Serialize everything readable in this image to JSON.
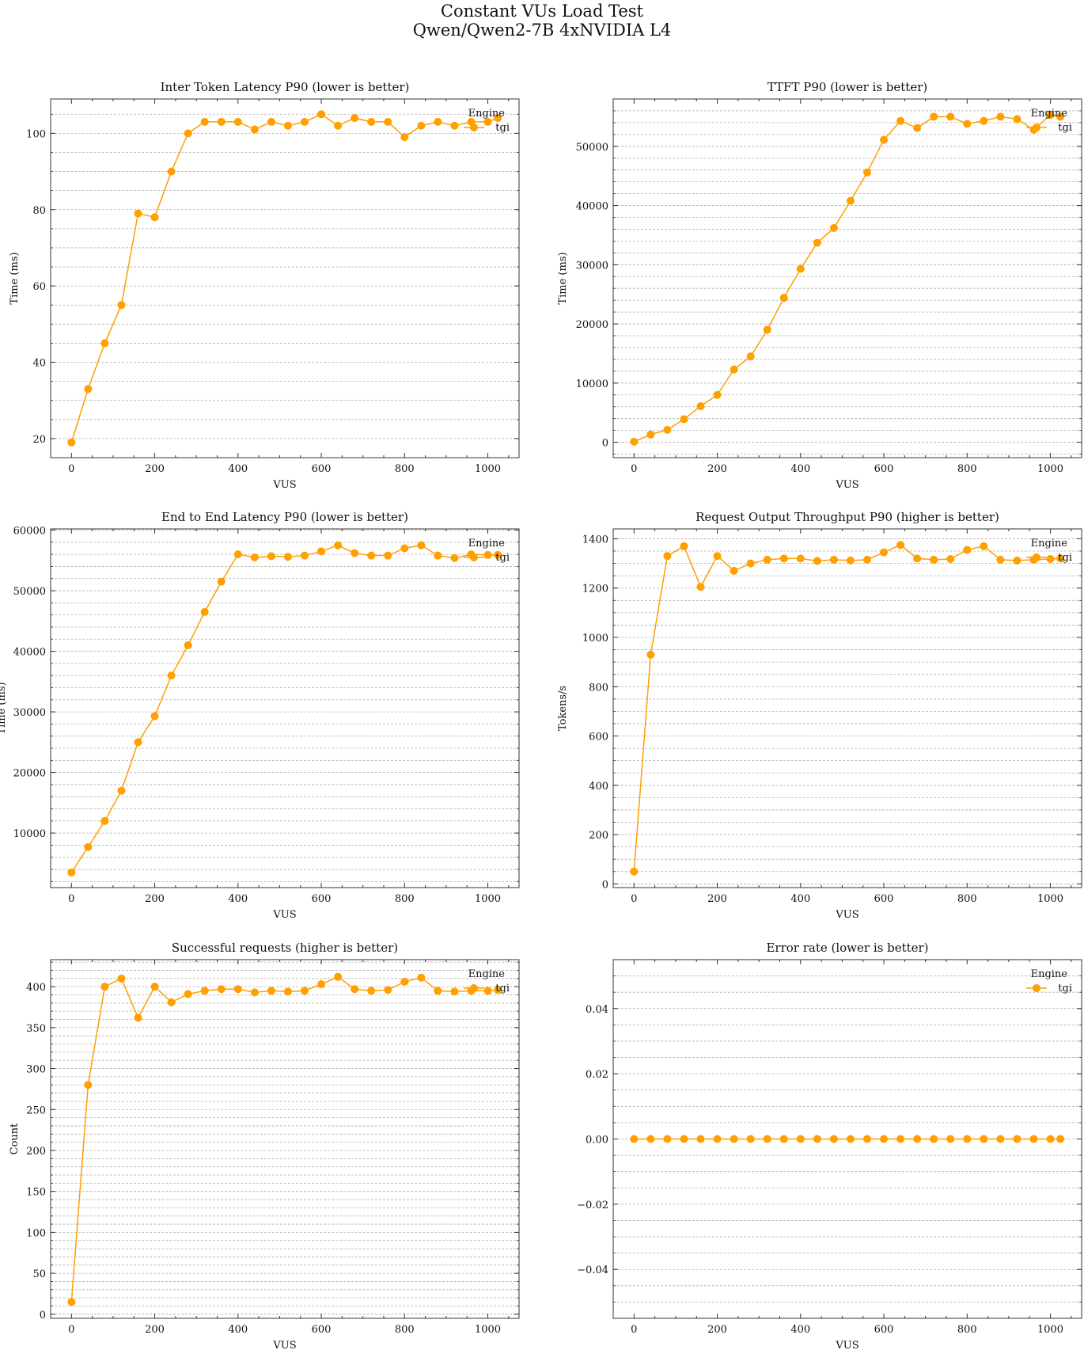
{
  "figure": {
    "title_line1": "Constant VUs Load Test",
    "title_line2": "Qwen/Qwen2-7B 4xNVIDIA L4"
  },
  "colors": {
    "series": "#ff9f00",
    "grid": "#b0b0b0"
  },
  "chart_data": [
    {
      "type": "line",
      "title": "Inter Token Latency P90 (lower is better)",
      "xlabel": "VUS",
      "ylabel": "Time (ms)",
      "xlim": [
        -50,
        1075
      ],
      "ylim": [
        15,
        109
      ],
      "yticks": [
        20,
        40,
        60,
        80,
        100
      ],
      "ygrid_step": 5,
      "xticks": [
        0,
        200,
        400,
        600,
        800,
        1000
      ],
      "legend": {
        "title": "Engine",
        "entries": [
          "tgi"
        ],
        "placement": "top-right"
      },
      "x": [
        0,
        40,
        80,
        120,
        160,
        200,
        240,
        280,
        320,
        360,
        400,
        440,
        480,
        520,
        560,
        600,
        640,
        680,
        720,
        760,
        800,
        840,
        880,
        920,
        960,
        1000,
        1024
      ],
      "series": [
        {
          "name": "tgi",
          "values": [
            19,
            33,
            45,
            55,
            79,
            78,
            90,
            100,
            103,
            103,
            103,
            101,
            103,
            102,
            103,
            105,
            102,
            104,
            103,
            103,
            99,
            102,
            103,
            102,
            103,
            103,
            104
          ]
        }
      ]
    },
    {
      "type": "line",
      "title": "TTFT P90 (lower is better)",
      "xlabel": "VUS",
      "ylabel": "Time (ms)",
      "xlim": [
        -50,
        1075
      ],
      "ylim": [
        -2600,
        58000
      ],
      "yticks": [
        0,
        10000,
        20000,
        30000,
        40000,
        50000
      ],
      "ygrid_step": 2000,
      "xticks": [
        0,
        200,
        400,
        600,
        800,
        1000
      ],
      "legend": {
        "title": "Engine",
        "entries": [
          "tgi"
        ],
        "placement": "top-right"
      },
      "x": [
        0,
        40,
        80,
        120,
        160,
        200,
        240,
        280,
        320,
        360,
        400,
        440,
        480,
        520,
        560,
        600,
        640,
        680,
        720,
        760,
        800,
        840,
        880,
        920,
        960,
        1000,
        1024
      ],
      "series": [
        {
          "name": "tgi",
          "values": [
            100,
            1300,
            2100,
            3900,
            6100,
            8000,
            12300,
            14500,
            19000,
            24400,
            29300,
            33700,
            36200,
            40800,
            45600,
            51100,
            54300,
            53100,
            55000,
            55000,
            53800,
            54300,
            55000,
            54600,
            52800,
            55300,
            55000
          ]
        }
      ]
    },
    {
      "type": "line",
      "title": "End to End Latency P90 (lower is better)",
      "xlabel": "VUS",
      "ylabel": "Time (ms)",
      "xlim": [
        -50,
        1075
      ],
      "ylim": [
        1000,
        60200
      ],
      "yticks": [
        10000,
        20000,
        30000,
        40000,
        50000,
        60000
      ],
      "ygrid_step": 2000,
      "xticks": [
        0,
        200,
        400,
        600,
        800,
        1000
      ],
      "legend": {
        "title": "Engine",
        "entries": [
          "tgi"
        ],
        "placement": "top-right"
      },
      "x": [
        0,
        40,
        80,
        120,
        160,
        200,
        240,
        280,
        320,
        360,
        400,
        440,
        480,
        520,
        560,
        600,
        640,
        680,
        720,
        760,
        800,
        840,
        880,
        920,
        960,
        1000,
        1024
      ],
      "series": [
        {
          "name": "tgi",
          "values": [
            3500,
            7700,
            12000,
            17000,
            25000,
            29300,
            36000,
            41000,
            46500,
            51500,
            56000,
            55500,
            55700,
            55600,
            55800,
            56500,
            57500,
            56200,
            55800,
            55800,
            57000,
            57500,
            55800,
            55400,
            56000,
            55900,
            55900
          ]
        }
      ]
    },
    {
      "type": "line",
      "title": "Request Output Throughput P90 (higher is better)",
      "xlabel": "VUS",
      "ylabel": "Tokens/s",
      "xlim": [
        -50,
        1075
      ],
      "ylim": [
        -15,
        1440
      ],
      "yticks": [
        0,
        200,
        400,
        600,
        800,
        1000,
        1200,
        1400
      ],
      "ygrid_step": 50,
      "xticks": [
        0,
        200,
        400,
        600,
        800,
        1000
      ],
      "legend": {
        "title": "Engine",
        "entries": [
          "tgi"
        ],
        "placement": "top-right"
      },
      "x": [
        0,
        40,
        80,
        120,
        160,
        200,
        240,
        280,
        320,
        360,
        400,
        440,
        480,
        520,
        560,
        600,
        640,
        680,
        720,
        760,
        800,
        840,
        880,
        920,
        960,
        1000,
        1024
      ],
      "series": [
        {
          "name": "tgi",
          "values": [
            50,
            930,
            1330,
            1370,
            1205,
            1330,
            1270,
            1300,
            1315,
            1320,
            1320,
            1310,
            1315,
            1312,
            1315,
            1345,
            1375,
            1320,
            1315,
            1318,
            1355,
            1370,
            1315,
            1312,
            1315,
            1318,
            1320
          ]
        }
      ]
    },
    {
      "type": "line",
      "title": "Successful requests (higher is better)",
      "xlabel": "VUS",
      "ylabel": "Count",
      "xlim": [
        -50,
        1075
      ],
      "ylim": [
        -5,
        433
      ],
      "yticks": [
        0,
        50,
        100,
        150,
        200,
        250,
        300,
        350,
        400
      ],
      "ygrid_step": 10,
      "xticks": [
        0,
        200,
        400,
        600,
        800,
        1000
      ],
      "legend": {
        "title": "Engine",
        "entries": [
          "tgi"
        ],
        "placement": "top-right"
      },
      "x": [
        0,
        40,
        80,
        120,
        160,
        200,
        240,
        280,
        320,
        360,
        400,
        440,
        480,
        520,
        560,
        600,
        640,
        680,
        720,
        760,
        800,
        840,
        880,
        920,
        960,
        1000,
        1024
      ],
      "series": [
        {
          "name": "tgi",
          "values": [
            15,
            280,
            400,
            410,
            362,
            400,
            381,
            391,
            395,
            397,
            397,
            393,
            395,
            394,
            395,
            403,
            412,
            397,
            395,
            396,
            406,
            411,
            395,
            394,
            395,
            395,
            396
          ]
        }
      ]
    },
    {
      "type": "line",
      "title": "Error rate (lower is better)",
      "xlabel": "VUS",
      "ylabel": "",
      "xlim": [
        -50,
        1075
      ],
      "ylim": [
        -0.055,
        0.055
      ],
      "yticks": [
        -0.04,
        -0.02,
        0.0,
        0.02,
        0.04
      ],
      "ytick_labels": [
        "−0.04",
        "−0.02",
        "0.00",
        "0.02",
        "0.04"
      ],
      "ygrid_step": 0.005,
      "xticks": [
        0,
        200,
        400,
        600,
        800,
        1000
      ],
      "legend": {
        "title": "Engine",
        "entries": [
          "tgi"
        ],
        "placement": "top-right"
      },
      "x": [
        0,
        40,
        80,
        120,
        160,
        200,
        240,
        280,
        320,
        360,
        400,
        440,
        480,
        520,
        560,
        600,
        640,
        680,
        720,
        760,
        800,
        840,
        880,
        920,
        960,
        1000,
        1024
      ],
      "series": [
        {
          "name": "tgi",
          "values": [
            0,
            0,
            0,
            0,
            0,
            0,
            0,
            0,
            0,
            0,
            0,
            0,
            0,
            0,
            0,
            0,
            0,
            0,
            0,
            0,
            0,
            0,
            0,
            0,
            0,
            0,
            0
          ]
        }
      ]
    }
  ]
}
